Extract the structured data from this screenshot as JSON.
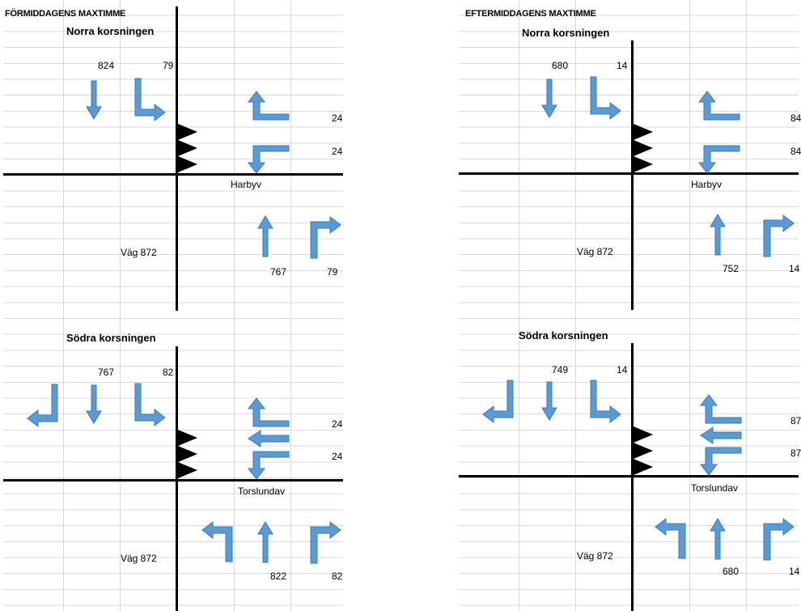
{
  "colors": {
    "arrow_fill": "#5b9bd5",
    "arrow_stroke": "#3a7ab8",
    "grid": "#d9d9d9"
  },
  "morning": {
    "title": "FÖRMIDDAGENS MAXTIMME",
    "north": {
      "heading": "Norra korsningen",
      "incoming_straight": "824",
      "incoming_left": "79",
      "right_upper": "24",
      "right_lower": "24",
      "side_road": "Harbyv",
      "main_road": "Väg 872",
      "bottom_straight": "767",
      "bottom_right": "79"
    },
    "south": {
      "heading": "Södra korsningen",
      "incoming_straight": "767",
      "incoming_left": "82",
      "right_upper": "24",
      "right_lower": "24",
      "side_road": "Torslundav",
      "main_road": "Väg 872",
      "bottom_straight": "822",
      "bottom_right": "82"
    }
  },
  "afternoon": {
    "title": "EFTERMIDDAGENS MAXTIMME",
    "north": {
      "heading": "Norra korsningen",
      "incoming_straight": "680",
      "incoming_left": "14",
      "right_upper": "84",
      "right_lower": "84",
      "side_road": "Harbyv",
      "main_road": "Väg 872",
      "bottom_straight": "752",
      "bottom_right": "14"
    },
    "south": {
      "heading": "Södra korsningen",
      "incoming_straight": "749",
      "incoming_left": "14",
      "right_upper": "87",
      "right_lower": "87",
      "side_road": "Torslundav",
      "main_road": "Väg 872",
      "bottom_straight": "680",
      "bottom_right": "14"
    }
  }
}
